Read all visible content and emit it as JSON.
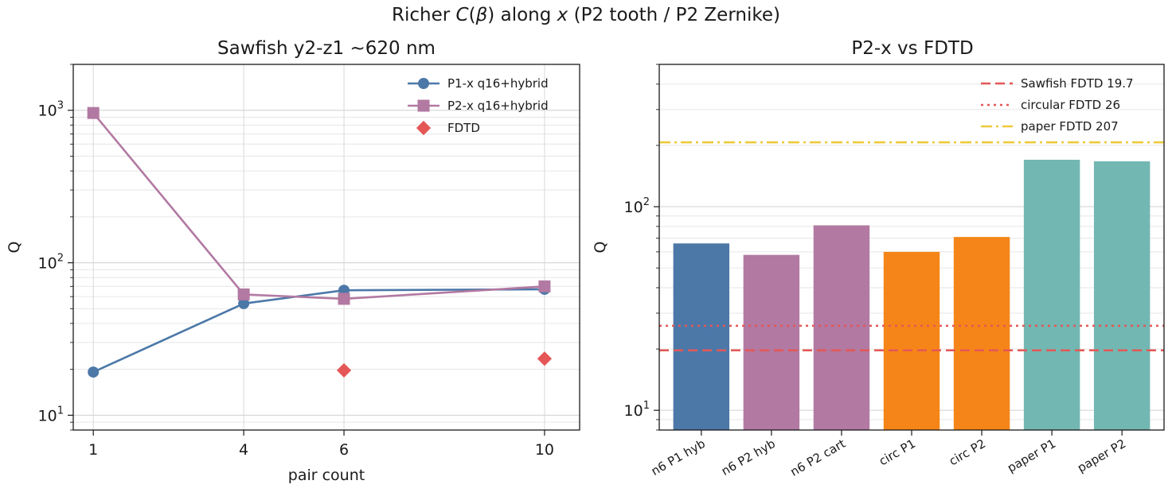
{
  "figure": {
    "suptitle": "Richer C(β) along x (P2 tooth / P2 Zernike)"
  },
  "chart_data": [
    {
      "type": "line",
      "title": "Sawfish y2-z1 ~620 nm",
      "xlabel": "pair count",
      "ylabel": "Q",
      "yscale": "log",
      "ylim": [
        8,
        2000
      ],
      "xlim": [
        0.6,
        10.7
      ],
      "xticks": [
        "1",
        "4",
        "6",
        "10"
      ],
      "yticks": [
        {
          "base": "10",
          "exp": "1"
        },
        {
          "base": "10",
          "exp": "2"
        },
        {
          "base": "10",
          "exp": "3"
        }
      ],
      "grid": true,
      "legend_position": "top-right",
      "series": [
        {
          "name": "P1-x q16+hybrid",
          "marker": "circle",
          "color": "#4c78a8",
          "x": [
            1,
            4,
            6,
            10
          ],
          "y": [
            19.2,
            54,
            66,
            67
          ]
        },
        {
          "name": "P2-x q16+hybrid",
          "marker": "square",
          "color": "#b279a2",
          "x": [
            1,
            4,
            6,
            10
          ],
          "y": [
            960,
            62,
            58,
            70
          ]
        },
        {
          "name": "FDTD",
          "marker": "diamond",
          "color": "#e45756",
          "x": [
            6,
            10
          ],
          "y": [
            19.7,
            23.5
          ]
        }
      ]
    },
    {
      "type": "bar",
      "title": "P2-x vs FDTD",
      "ylabel": "Q",
      "yscale": "log",
      "ylim": [
        8,
        500
      ],
      "yticks": [
        {
          "base": "10",
          "exp": "1"
        },
        {
          "base": "10",
          "exp": "2"
        }
      ],
      "grid": true,
      "legend_position": "top-right",
      "categories": [
        "n6 P1 hyb",
        "n6 P2 hyb",
        "n6 P2 cart",
        "circ P1",
        "circ P2",
        "paper P1",
        "paper P2"
      ],
      "values": [
        66,
        58,
        81,
        60,
        71,
        170,
        167
      ],
      "bar_colors": [
        "#4c78a8",
        "#b279a2",
        "#b279a2",
        "#f58518",
        "#f58518",
        "#72b7b2",
        "#72b7b2"
      ],
      "reference_lines": [
        {
          "name": "Sawfish FDTD 19.7",
          "value": 19.7,
          "style": "dashed",
          "color": "#e45756"
        },
        {
          "name": "circular FDTD 26",
          "value": 26,
          "style": "dotted",
          "color": "#e45756"
        },
        {
          "name": "paper FDTD 207",
          "value": 207,
          "style": "dashdot",
          "color": "#eeca3b"
        }
      ]
    }
  ]
}
